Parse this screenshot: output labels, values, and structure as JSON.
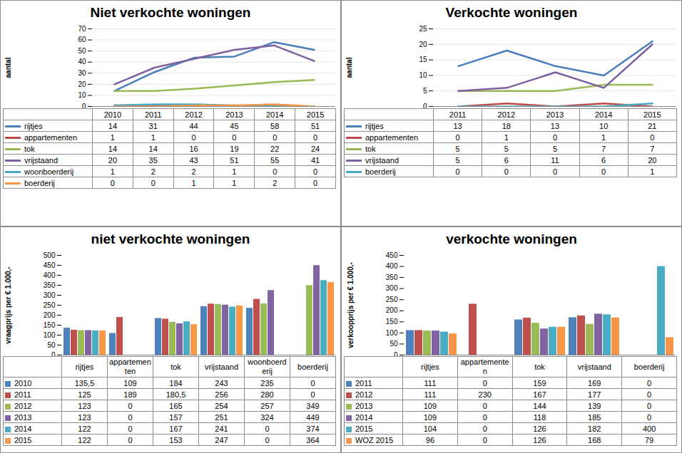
{
  "chart_data": [
    {
      "type": "line",
      "title": "Niet verkochte woningen",
      "ylabel": "aantal",
      "x": [
        2010,
        2011,
        2012,
        2013,
        2014,
        2015
      ],
      "series": [
        {
          "name": "rijtjes",
          "color": "#4a7ebb",
          "values": [
            14,
            31,
            44,
            45,
            58,
            51
          ]
        },
        {
          "name": "appartementen",
          "color": "#be4b48",
          "values": [
            1,
            1,
            0,
            0,
            0,
            0
          ]
        },
        {
          "name": "tok",
          "color": "#98b954",
          "values": [
            14,
            14,
            16,
            19,
            22,
            24
          ]
        },
        {
          "name": "vrijstaand",
          "color": "#7d60a0",
          "values": [
            20,
            35,
            43,
            51,
            55,
            41
          ]
        },
        {
          "name": "woonboerderij",
          "color": "#46aac5",
          "values": [
            1,
            2,
            2,
            1,
            0,
            0
          ]
        },
        {
          "name": "boerderij",
          "color": "#f79646",
          "values": [
            0,
            0,
            1,
            1,
            2,
            0
          ]
        }
      ],
      "ylim": [
        0,
        70
      ],
      "yticks": [
        0,
        10,
        20,
        30,
        40,
        50,
        60,
        70
      ],
      "grid": true,
      "legend": "bottom",
      "data_labels": true
    },
    {
      "type": "line",
      "title": "Verkochte woningen",
      "ylabel": "aantal",
      "x": [
        2011,
        2012,
        2013,
        2014,
        2015
      ],
      "series": [
        {
          "name": "rijtjes",
          "color": "#4a7ebb",
          "values": [
            13,
            18,
            13,
            10,
            21
          ]
        },
        {
          "name": "appartementen",
          "color": "#be4b48",
          "values": [
            0,
            1,
            0,
            1,
            0
          ]
        },
        {
          "name": "tok",
          "color": "#98b954",
          "values": [
            5,
            5,
            5,
            7,
            7
          ]
        },
        {
          "name": "vrijstaand",
          "color": "#7d60a0",
          "values": [
            5,
            6,
            11,
            6,
            20
          ]
        },
        {
          "name": "boerderij",
          "color": "#46aac5",
          "values": [
            0,
            0,
            0,
            0,
            1
          ]
        }
      ],
      "ylim": [
        0,
        25
      ],
      "yticks": [
        0,
        5,
        10,
        15,
        20,
        25
      ],
      "grid": true,
      "legend": "bottom",
      "data_labels": true
    },
    {
      "type": "bar",
      "title": "niet verkochte woningen",
      "ylabel": "vraagprijs per € 1.000,-",
      "categories": [
        "rijtjes",
        "appartementen",
        "tok",
        "vrijstaand",
        "woonboerderij",
        "boerderij"
      ],
      "series": [
        {
          "name": "2010",
          "color": "#4f81bd",
          "values": [
            135.5,
            109,
            184,
            243,
            235,
            0
          ],
          "value_labels": [
            "135,5",
            "109",
            "184",
            "243",
            "235",
            "0"
          ]
        },
        {
          "name": "2011",
          "color": "#c0504d",
          "values": [
            125,
            189,
            180.5,
            256,
            280,
            0
          ],
          "value_labels": [
            "125",
            "189",
            "180,5",
            "256",
            "280",
            "0"
          ]
        },
        {
          "name": "2012",
          "color": "#9bbb59",
          "values": [
            123,
            0,
            165,
            254,
            257,
            349
          ]
        },
        {
          "name": "2013",
          "color": "#8064a2",
          "values": [
            123,
            0,
            157,
            251,
            324,
            449
          ]
        },
        {
          "name": "2014",
          "color": "#4bacc6",
          "values": [
            122,
            0,
            167,
            241,
            0,
            374
          ]
        },
        {
          "name": "2015",
          "color": "#f79646",
          "values": [
            122,
            0,
            153,
            247,
            0,
            364
          ]
        }
      ],
      "ylim": [
        0,
        500
      ],
      "yticks": [
        0,
        50,
        100,
        150,
        200,
        250,
        300,
        350,
        400,
        450,
        500
      ],
      "grid": false,
      "legend": "bottom",
      "data_labels": true
    },
    {
      "type": "bar",
      "title": "verkochte woningen",
      "ylabel": "verkoopprijs per € 1.000,-",
      "categories": [
        "rijtjes",
        "appartementen",
        "tok",
        "vrijstaand",
        "boerderij"
      ],
      "series": [
        {
          "name": "2011",
          "color": "#4f81bd",
          "values": [
            111,
            0,
            159,
            169,
            0
          ]
        },
        {
          "name": "2012",
          "color": "#c0504d",
          "values": [
            111,
            230,
            167,
            177,
            0
          ]
        },
        {
          "name": "2013",
          "color": "#9bbb59",
          "values": [
            109,
            0,
            144,
            139,
            0
          ]
        },
        {
          "name": "2014",
          "color": "#8064a2",
          "values": [
            109,
            0,
            118,
            185,
            0
          ]
        },
        {
          "name": "2015",
          "color": "#4bacc6",
          "values": [
            104,
            0,
            126,
            182,
            400
          ]
        },
        {
          "name": "WOZ 2015",
          "color": "#f79646",
          "values": [
            96,
            0,
            126,
            168,
            79
          ]
        }
      ],
      "ylim": [
        0,
        450
      ],
      "yticks": [
        0,
        50,
        100,
        150,
        200,
        250,
        300,
        350,
        400,
        450
      ],
      "grid": false,
      "legend": "bottom",
      "data_labels": true
    }
  ]
}
